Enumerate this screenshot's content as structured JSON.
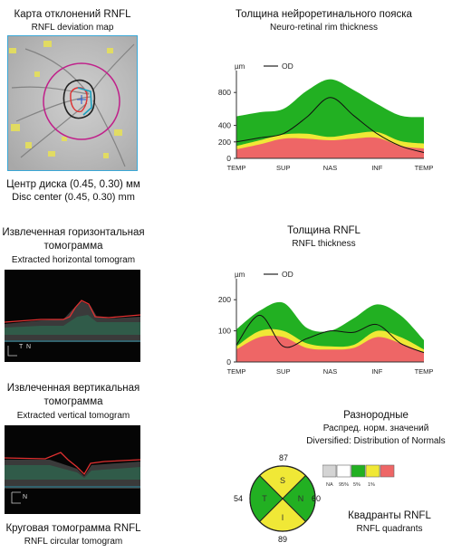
{
  "deviation_map": {
    "title_ru": "Карта отклонений RNFL",
    "title_en": "RNFL deviation map",
    "center_ru": "Центр диска (0.45, 0.30) мм",
    "center_en": "Disc center (0.45, 0.30) mm"
  },
  "horizontal_tomogram": {
    "title_ru_1": "Извлеченная горизонтальная",
    "title_ru_2": "томограмма",
    "title_en": "Extracted horizontal tomogram",
    "marker_left": "T",
    "marker_right": "N"
  },
  "vertical_tomogram": {
    "title_ru_1": "Извлеченная вертикальная",
    "title_ru_2": "томограмма",
    "title_en": "Extracted vertical tomogram",
    "marker": "N"
  },
  "circular_tomogram": {
    "title_ru": "Круговая томограмма RNFL",
    "title_en": "RNFL circular tomogram"
  },
  "rim_thickness": {
    "title_ru": "Толщина нейроретинального пояска",
    "title_en": "Neuro-retinal rim thickness"
  },
  "rnfl_thickness": {
    "title_ru": "Толщина RNFL",
    "title_en": "RNFL thickness"
  },
  "distribution": {
    "title_ru_1": "Разнородные",
    "title_ru_2": "Распред. норм. значений",
    "title_en": "Diversified: Distribution of Normals",
    "legend": [
      {
        "label": "NA",
        "color": "#d4d4d4"
      },
      {
        "label": "95%",
        "color": "#ffffff"
      },
      {
        "label": "5%",
        "color": "#22b022"
      },
      {
        "label": "1%",
        "color": "#f0e836"
      },
      {
        "label": "",
        "color": "#ee6666"
      }
    ]
  },
  "quadrants": {
    "title_ru": "Квадранты RNFL",
    "title_en": "RNFL quadrants",
    "values": {
      "S": "87",
      "N": "60",
      "I": "89",
      "T": "54"
    },
    "letters": {
      "S": "S",
      "N": "N",
      "I": "I",
      "T": "T"
    },
    "colors": {
      "S": "#f0e836",
      "N": "#22b022",
      "I": "#f0e836",
      "T": "#22b022"
    }
  },
  "chart_data": [
    {
      "type": "area",
      "title": "Neuro-retinal rim thickness",
      "ylabel": "µm",
      "legend": "OD",
      "x_categories": [
        "TEMP",
        "SUP",
        "NAS",
        "INF",
        "TEMP"
      ],
      "y_ticks": [
        0,
        200,
        400,
        800
      ],
      "ylim": [
        0,
        1000
      ],
      "x": [
        0,
        0.5,
        1,
        1.5,
        2,
        2.5,
        3,
        3.5,
        4
      ],
      "series": [
        {
          "name": "normal_upper",
          "values": [
            510,
            560,
            600,
            820,
            960,
            830,
            660,
            520,
            500
          ]
        },
        {
          "name": "5pct",
          "values": [
            150,
            220,
            290,
            300,
            260,
            300,
            320,
            210,
            180
          ]
        },
        {
          "name": "1pct",
          "values": [
            110,
            170,
            240,
            240,
            220,
            240,
            250,
            150,
            120
          ]
        },
        {
          "name": "OD",
          "values": [
            200,
            250,
            300,
            500,
            740,
            520,
            300,
            150,
            70
          ]
        }
      ]
    },
    {
      "type": "area",
      "title": "RNFL thickness",
      "ylabel": "µm",
      "legend": "OD",
      "x_categories": [
        "TEMP",
        "SUP",
        "NAS",
        "INF",
        "TEMP"
      ],
      "y_ticks": [
        0,
        100,
        200
      ],
      "ylim": [
        0,
        250
      ],
      "x": [
        0,
        0.5,
        1,
        1.5,
        2,
        2.5,
        3,
        3.5,
        4
      ],
      "series": [
        {
          "name": "normal_upper",
          "values": [
            105,
            165,
            190,
            110,
            100,
            140,
            185,
            150,
            70
          ]
        },
        {
          "name": "5pct",
          "values": [
            50,
            100,
            100,
            60,
            50,
            55,
            100,
            80,
            40
          ]
        },
        {
          "name": "1pct",
          "values": [
            40,
            80,
            80,
            45,
            40,
            45,
            80,
            60,
            30
          ]
        },
        {
          "name": "OD",
          "values": [
            55,
            150,
            50,
            75,
            100,
            95,
            120,
            60,
            30
          ]
        }
      ]
    }
  ]
}
